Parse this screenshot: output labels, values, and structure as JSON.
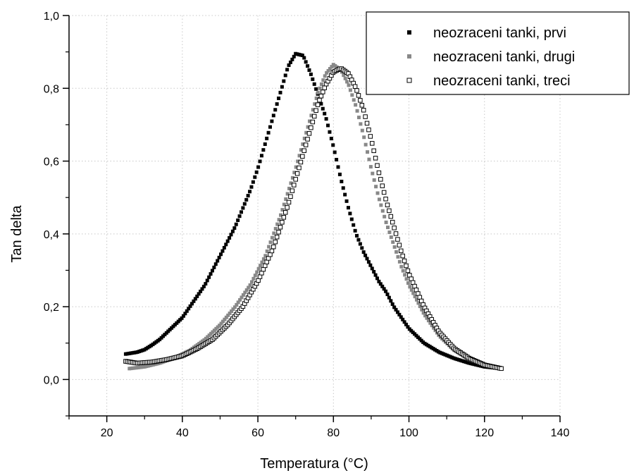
{
  "chart_data": {
    "type": "scatter",
    "xlabel": "Temperatura (°C)",
    "ylabel": "Tan delta",
    "xlim": [
      10,
      140
    ],
    "ylim": [
      -0.1,
      1.0
    ],
    "x_ticks": [
      "20",
      "40",
      "60",
      "80",
      "100",
      "120",
      "140"
    ],
    "y_ticks": [
      "0,0",
      "0,2",
      "0,4",
      "0,6",
      "0,8",
      "1,0"
    ],
    "grid": true,
    "legend_position": "top-right",
    "series": [
      {
        "name": "neozraceni tanki, prvi",
        "marker": "filled-square",
        "color": "#000000",
        "x": [
          25,
          28,
          30,
          32,
          34,
          36,
          38,
          40,
          42,
          44,
          46,
          48,
          50,
          52,
          54,
          56,
          58,
          60,
          62,
          64,
          66,
          68,
          70,
          72,
          74,
          76,
          78,
          80,
          82,
          84,
          86,
          88,
          90,
          92,
          94,
          96,
          98,
          100,
          104,
          108,
          112,
          116,
          120,
          124.5
        ],
        "y": [
          0.07,
          0.075,
          0.082,
          0.095,
          0.11,
          0.13,
          0.15,
          0.17,
          0.2,
          0.23,
          0.26,
          0.3,
          0.34,
          0.38,
          0.42,
          0.47,
          0.52,
          0.58,
          0.65,
          0.72,
          0.79,
          0.86,
          0.895,
          0.89,
          0.84,
          0.78,
          0.72,
          0.64,
          0.55,
          0.47,
          0.4,
          0.35,
          0.31,
          0.27,
          0.24,
          0.2,
          0.17,
          0.14,
          0.1,
          0.075,
          0.058,
          0.045,
          0.035,
          0.03
        ]
      },
      {
        "name": "neozraceni tanki, drugi",
        "marker": "gray-square",
        "color": "#888888",
        "x": [
          26,
          30,
          34,
          38,
          42,
          46,
          50,
          54,
          58,
          62,
          66,
          70,
          72,
          74,
          76,
          78,
          80,
          82,
          84,
          86,
          88,
          90,
          92,
          94,
          96,
          98,
          100,
          104,
          108,
          112,
          116,
          120,
          124.5
        ],
        "y": [
          0.03,
          0.035,
          0.045,
          0.06,
          0.08,
          0.11,
          0.15,
          0.2,
          0.26,
          0.34,
          0.45,
          0.58,
          0.65,
          0.72,
          0.79,
          0.84,
          0.865,
          0.85,
          0.81,
          0.75,
          0.67,
          0.58,
          0.5,
          0.43,
          0.37,
          0.31,
          0.26,
          0.18,
          0.12,
          0.08,
          0.055,
          0.04,
          0.03
        ]
      },
      {
        "name": "neozraceni tanki, treci",
        "marker": "open-square",
        "color": "#000000",
        "x": [
          25,
          28,
          32,
          36,
          40,
          44,
          48,
          52,
          56,
          60,
          64,
          68,
          72,
          74,
          76,
          78,
          80,
          82,
          84,
          86,
          88,
          90,
          92,
          94,
          96,
          98,
          100,
          104,
          108,
          112,
          116,
          120,
          124.5
        ],
        "y": [
          0.05,
          0.045,
          0.048,
          0.055,
          0.065,
          0.085,
          0.11,
          0.15,
          0.2,
          0.27,
          0.36,
          0.48,
          0.62,
          0.69,
          0.76,
          0.81,
          0.845,
          0.855,
          0.84,
          0.8,
          0.74,
          0.66,
          0.57,
          0.49,
          0.42,
          0.35,
          0.29,
          0.2,
          0.13,
          0.085,
          0.058,
          0.04,
          0.03
        ]
      }
    ]
  }
}
